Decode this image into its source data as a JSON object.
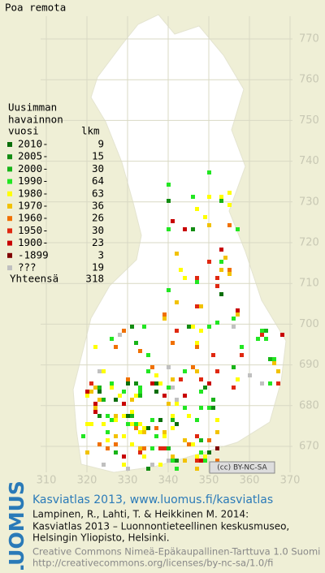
{
  "title": "Poa remota",
  "legend": {
    "heading": [
      "Uusimman",
      "havainnon"
    ],
    "col_headers": [
      "vuosi",
      "lkm"
    ],
    "rows": [
      {
        "label": "2010-",
        "count": 9,
        "color": "#0a6e0a"
      },
      {
        "label": "2005-",
        "count": 15,
        "color": "#138c13"
      },
      {
        "label": "2000-",
        "count": 30,
        "color": "#18b418"
      },
      {
        "label": "1990-",
        "count": 64,
        "color": "#22e622"
      },
      {
        "label": "1980-",
        "count": 63,
        "color": "#ffff00"
      },
      {
        "label": "1970-",
        "count": 36,
        "color": "#f2c200"
      },
      {
        "label": "1960-",
        "count": 26,
        "color": "#f07000"
      },
      {
        "label": "1950-",
        "count": 30,
        "color": "#e02810"
      },
      {
        "label": "1900-",
        "count": 23,
        "color": "#c80000"
      },
      {
        "label": "-1899",
        "count": 3,
        "color": "#800000"
      },
      {
        "label": "???",
        "count": 19,
        "color": "#c0c0c0"
      }
    ],
    "total": {
      "label": "Yhteensä",
      "count": 318
    }
  },
  "axes": {
    "x_labels": [
      "310",
      "320",
      "330",
      "340",
      "350",
      "360",
      "370"
    ],
    "y_labels": [
      "770",
      "760",
      "750",
      "740",
      "730",
      "720",
      "710",
      "700",
      "690",
      "680",
      "670"
    ]
  },
  "license_badge": "(cc) BY-NC-SA",
  "footer": {
    "logo": "LUOMUS",
    "heading": "Kasviatlas 2013, www.luomus.fi/kasviatlas",
    "citation": [
      "Lampinen, R., Lahti, T. & Heikkinen M. 2014:",
      "Kasviatlas 2013 – Luonnontieteellinen keskusmuseo,",
      "Helsingin Yliopisto, Helsinki."
    ],
    "license": [
      "Creative Commons Nimeä-Epäkaupallinen-Tarttuva 1.0 Suomi",
      "http://creativecommons.org/licenses/by-nc-sa/1.0/fi"
    ]
  }
}
